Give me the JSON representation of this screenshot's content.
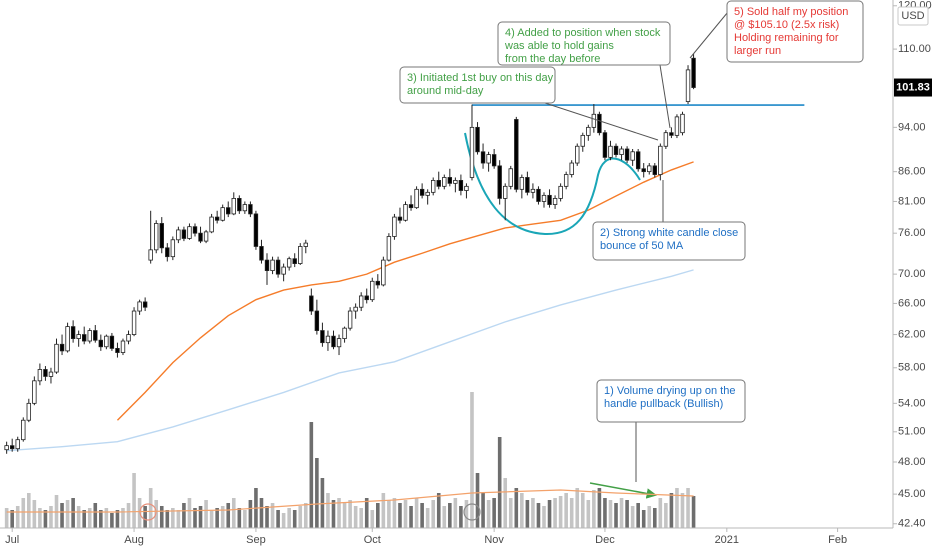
{
  "chart_data": {
    "type": "candlestick",
    "currency": "USD",
    "xlim": [
      -1.2,
      160
    ],
    "xticks": [
      {
        "value": 1,
        "label": "Jul"
      },
      {
        "value": 23,
        "label": "Aug"
      },
      {
        "value": 45,
        "label": "Sep"
      },
      {
        "value": 66,
        "label": "Oct"
      },
      {
        "value": 88,
        "label": "Nov"
      },
      {
        "value": 108,
        "label": "Dec"
      },
      {
        "value": 130,
        "label": "2021"
      },
      {
        "value": 150,
        "label": "Feb"
      }
    ],
    "ylim": [
      42.04,
      121.4
    ],
    "log_scale": true,
    "grid": false,
    "yticks": [
      {
        "value": 120,
        "label": "120.00"
      },
      {
        "value": 110,
        "label": "110.00"
      },
      {
        "value": 94,
        "label": "94.00"
      },
      {
        "value": 86,
        "label": "86.00"
      },
      {
        "value": 81,
        "label": "81.00"
      },
      {
        "value": 76,
        "label": "76.00"
      },
      {
        "value": 70,
        "label": "70.00"
      },
      {
        "value": 66,
        "label": "66.00"
      },
      {
        "value": 62,
        "label": "62.00"
      },
      {
        "value": 58,
        "label": "58.00"
      },
      {
        "value": 54,
        "label": "54.00"
      },
      {
        "value": 51,
        "label": "51.00"
      },
      {
        "value": 48,
        "label": "48.00"
      },
      {
        "value": 45,
        "label": "45.00"
      },
      {
        "value": 42.4,
        "label": "42.40"
      }
    ],
    "last_price": {
      "value": 101.83,
      "label": "101.83"
    },
    "up_color": "#ffffff",
    "down_color": "#000000",
    "ohlc": [
      [
        49.2,
        50.0,
        48.8,
        49.6
      ],
      [
        49.6,
        50.3,
        49.0,
        49.3
      ],
      [
        49.3,
        50.5,
        49.0,
        50.2
      ],
      [
        50.2,
        52.5,
        50.0,
        52.2
      ],
      [
        52.2,
        54.5,
        52.0,
        54.0
      ],
      [
        54.0,
        57.0,
        53.8,
        56.5
      ],
      [
        56.5,
        58.5,
        56.0,
        57.8
      ],
      [
        57.8,
        58.2,
        56.5,
        57.0
      ],
      [
        57.0,
        58.0,
        56.2,
        57.5
      ],
      [
        57.5,
        61.5,
        57.3,
        60.8
      ],
      [
        60.8,
        62.0,
        59.5,
        60.0
      ],
      [
        60.0,
        63.5,
        59.8,
        63.0
      ],
      [
        63.0,
        63.8,
        61.0,
        61.5
      ],
      [
        61.5,
        62.5,
        60.5,
        62.0
      ],
      [
        62.0,
        63.0,
        60.8,
        61.2
      ],
      [
        61.2,
        62.8,
        60.9,
        62.5
      ],
      [
        62.5,
        63.2,
        61.0,
        61.3
      ],
      [
        61.3,
        62.0,
        60.0,
        60.5
      ],
      [
        60.5,
        62.0,
        60.2,
        61.8
      ],
      [
        61.8,
        62.2,
        60.0,
        60.3
      ],
      [
        60.3,
        61.0,
        59.2,
        59.8
      ],
      [
        59.8,
        61.5,
        59.5,
        61.2
      ],
      [
        61.2,
        62.5,
        60.8,
        62.0
      ],
      [
        62.0,
        65.5,
        61.8,
        65.0
      ],
      [
        65.0,
        66.5,
        64.5,
        66.2
      ],
      [
        66.2,
        66.8,
        65.0,
        65.5
      ],
      [
        72.0,
        79.5,
        71.5,
        73.5
      ],
      [
        73.5,
        78.0,
        73.0,
        77.5
      ],
      [
        77.5,
        78.5,
        73.0,
        73.8
      ],
      [
        73.8,
        74.5,
        71.8,
        72.5
      ],
      [
        72.5,
        75.5,
        72.0,
        75.0
      ],
      [
        75.0,
        77.0,
        74.5,
        76.5
      ],
      [
        76.5,
        77.0,
        74.8,
        75.2
      ],
      [
        75.2,
        77.5,
        75.0,
        77.0
      ],
      [
        77.0,
        77.5,
        75.5,
        76.0
      ],
      [
        76.0,
        77.0,
        74.5,
        74.8
      ],
      [
        74.8,
        76.5,
        74.5,
        76.2
      ],
      [
        76.2,
        79.0,
        76.0,
        78.5
      ],
      [
        78.5,
        79.5,
        77.5,
        78.0
      ],
      [
        78.0,
        80.5,
        77.8,
        80.0
      ],
      [
        80.0,
        81.0,
        78.5,
        79.0
      ],
      [
        79.0,
        82.5,
        78.8,
        81.5
      ],
      [
        81.5,
        82.0,
        79.0,
        79.5
      ],
      [
        79.5,
        81.0,
        79.0,
        80.5
      ],
      [
        80.5,
        81.0,
        78.5,
        79.0
      ],
      [
        79.0,
        79.5,
        73.5,
        74.0
      ],
      [
        74.0,
        75.0,
        71.5,
        72.0
      ],
      [
        72.0,
        73.0,
        68.5,
        70.5
      ],
      [
        70.5,
        72.5,
        70.0,
        72.0
      ],
      [
        72.0,
        72.5,
        69.5,
        70.0
      ],
      [
        70.0,
        71.5,
        69.0,
        71.0
      ],
      [
        71.0,
        72.5,
        70.5,
        72.2
      ],
      [
        72.2,
        73.0,
        71.0,
        71.5
      ],
      [
        71.5,
        74.5,
        71.3,
        74.0
      ],
      [
        74.0,
        75.0,
        73.0,
        74.5
      ],
      [
        67.0,
        68.0,
        64.5,
        65.0
      ],
      [
        65.0,
        66.5,
        62.0,
        62.5
      ],
      [
        62.5,
        63.5,
        60.5,
        61.0
      ],
      [
        61.0,
        62.5,
        60.0,
        61.8
      ],
      [
        61.8,
        62.5,
        60.2,
        60.5
      ],
      [
        60.5,
        62.0,
        59.5,
        61.5
      ],
      [
        61.5,
        63.0,
        61.0,
        62.8
      ],
      [
        62.8,
        65.5,
        62.5,
        65.0
      ],
      [
        65.0,
        66.0,
        64.0,
        65.5
      ],
      [
        65.5,
        67.5,
        65.0,
        67.0
      ],
      [
        67.0,
        68.0,
        66.0,
        66.5
      ],
      [
        66.5,
        69.5,
        66.2,
        69.0
      ],
      [
        69.0,
        70.0,
        68.0,
        68.5
      ],
      [
        68.5,
        72.5,
        68.3,
        72.0
      ],
      [
        72.0,
        76.0,
        71.8,
        75.5
      ],
      [
        75.5,
        79.0,
        75.0,
        78.5
      ],
      [
        78.5,
        80.0,
        77.5,
        78.0
      ],
      [
        78.0,
        81.0,
        77.8,
        80.5
      ],
      [
        80.5,
        82.0,
        79.5,
        80.0
      ],
      [
        80.0,
        83.5,
        79.8,
        83.0
      ],
      [
        83.0,
        84.0,
        81.5,
        82.0
      ],
      [
        82.0,
        83.0,
        80.5,
        82.5
      ],
      [
        82.5,
        85.0,
        82.0,
        84.5
      ],
      [
        84.5,
        86.0,
        83.0,
        83.5
      ],
      [
        83.5,
        85.5,
        83.0,
        85.0
      ],
      [
        85.0,
        86.5,
        83.5,
        84.0
      ],
      [
        84.0,
        85.0,
        82.5,
        84.5
      ],
      [
        84.5,
        85.5,
        82.0,
        82.8
      ],
      [
        82.8,
        84.0,
        81.5,
        83.5
      ],
      [
        85.0,
        98.4,
        84.5,
        94.0
      ],
      [
        94.0,
        95.0,
        89.0,
        89.5
      ],
      [
        89.5,
        91.0,
        86.5,
        87.5
      ],
      [
        87.5,
        89.5,
        86.0,
        89.0
      ],
      [
        89.0,
        90.0,
        86.5,
        87.0
      ],
      [
        87.0,
        88.0,
        80.5,
        81.5
      ],
      [
        81.5,
        84.0,
        78.0,
        83.5
      ],
      [
        83.5,
        87.0,
        83.0,
        86.5
      ],
      [
        95.5,
        96.0,
        82.5,
        83.0
      ],
      [
        83.0,
        85.5,
        81.5,
        85.0
      ],
      [
        85.0,
        86.0,
        82.0,
        82.5
      ],
      [
        82.5,
        84.0,
        81.5,
        83.0
      ],
      [
        83.0,
        83.5,
        80.5,
        81.0
      ],
      [
        81.0,
        82.5,
        80.0,
        82.0
      ],
      [
        82.0,
        83.0,
        80.0,
        80.5
      ],
      [
        80.5,
        82.0,
        79.8,
        81.5
      ],
      [
        81.5,
        84.0,
        81.0,
        83.5
      ],
      [
        83.5,
        86.0,
        83.0,
        85.5
      ],
      [
        85.5,
        88.0,
        85.0,
        87.5
      ],
      [
        87.5,
        91.0,
        87.0,
        90.5
      ],
      [
        90.5,
        93.0,
        89.5,
        92.5
      ],
      [
        92.5,
        94.5,
        91.5,
        94.0
      ],
      [
        94.0,
        98.5,
        93.0,
        96.5
      ],
      [
        96.5,
        97.0,
        92.5,
        93.0
      ],
      [
        93.0,
        93.5,
        88.0,
        88.5
      ],
      [
        88.5,
        91.5,
        88.0,
        90.5
      ],
      [
        90.5,
        91.0,
        88.5,
        89.0
      ],
      [
        89.0,
        90.5,
        88.0,
        90.0
      ],
      [
        90.0,
        90.5,
        87.5,
        88.0
      ],
      [
        88.0,
        90.0,
        87.0,
        89.5
      ],
      [
        89.5,
        90.0,
        86.0,
        86.5
      ],
      [
        86.5,
        87.5,
        85.0,
        86.0
      ],
      [
        86.0,
        87.5,
        85.5,
        87.0
      ],
      [
        87.0,
        87.5,
        85.0,
        85.5
      ],
      [
        85.5,
        91.0,
        84.5,
        90.5
      ],
      [
        90.5,
        93.5,
        90.0,
        93.0
      ],
      [
        93.0,
        94.0,
        92.0,
        92.5
      ],
      [
        92.5,
        96.5,
        92.0,
        96.0
      ],
      [
        93.0,
        97.0,
        92.5,
        96.5
      ],
      [
        99.0,
        106.5,
        98.5,
        105.5
      ],
      [
        108.0,
        109.0,
        101.5,
        101.83
      ]
    ],
    "vlim": [
      0,
      136
    ],
    "volume_up_color": "#c4c4c4",
    "volume_down_color": "#6e6e6e",
    "volume": [
      20,
      18,
      22,
      30,
      35,
      28,
      20,
      18,
      22,
      33,
      25,
      28,
      30,
      22,
      18,
      20,
      25,
      18,
      20,
      15,
      18,
      20,
      25,
      55,
      30,
      22,
      40,
      28,
      22,
      18,
      20,
      18,
      25,
      30,
      20,
      22,
      28,
      18,
      20,
      22,
      25,
      30,
      20,
      18,
      28,
      40,
      30,
      22,
      25,
      18,
      15,
      20,
      18,
      22,
      25,
      106,
      70,
      50,
      35,
      28,
      30,
      25,
      28,
      22,
      20,
      30,
      18,
      25,
      35,
      28,
      30,
      25,
      28,
      22,
      30,
      25,
      20,
      28,
      35,
      22,
      25,
      30,
      22,
      28,
      136,
      55,
      35,
      28,
      30,
      91,
      50,
      30,
      40,
      35,
      28,
      30,
      25,
      22,
      28,
      30,
      32,
      35,
      30,
      40,
      35,
      28,
      38,
      40,
      30,
      28,
      25,
      30,
      28,
      22,
      25,
      18,
      22,
      20,
      30,
      25,
      35,
      40,
      35,
      40,
      32
    ],
    "series": [
      {
        "color": "#f57c2a",
        "x": [
          20,
          25,
          30,
          35,
          40,
          45,
          50,
          55,
          60,
          65,
          70,
          75,
          80,
          85,
          90,
          95,
          100,
          105,
          110,
          115,
          120,
          124
        ],
        "values": [
          52.2,
          55.2,
          58.6,
          61.6,
          64.4,
          66.5,
          67.8,
          68.5,
          69.0,
          70.0,
          71.7,
          73.0,
          74.4,
          75.6,
          76.8,
          77.4,
          78.0,
          79.6,
          81.9,
          84.2,
          86.3,
          87.7
        ]
      },
      {
        "color": "#bcd8f2",
        "x": [
          0,
          10,
          20,
          30,
          40,
          50,
          60,
          70,
          80,
          90,
          100,
          110,
          120,
          124
        ],
        "values": [
          49.1,
          49.5,
          50.0,
          51.5,
          53.3,
          55.2,
          57.4,
          58.7,
          61.1,
          63.6,
          65.8,
          67.8,
          69.7,
          70.6
        ]
      },
      {
        "color": "#f3a26b",
        "axis": "volume",
        "x": [
          0,
          20,
          40,
          56,
          70,
          84,
          100,
          110,
          124
        ],
        "values": [
          16,
          16,
          18,
          24,
          28,
          35,
          38,
          35,
          32
        ]
      }
    ],
    "resistance": {
      "value": 98.3,
      "x": [
        84,
        144
      ],
      "color": "#1e88c8"
    },
    "annotations": [
      {
        "lines": [
          "1) Volume drying up on the",
          "handle pullback (Bullish)"
        ],
        "color": "#1f6fc4"
      },
      {
        "lines": [
          "2) Strong white candle close",
          "bounce of 50 MA"
        ],
        "color": "#1f6fc4"
      },
      {
        "lines": [
          "3) Initiated 1st buy on this day",
          "around mid-day"
        ],
        "color": "#43a047"
      },
      {
        "lines": [
          "4) Added to position when stock",
          "was able to hold gains",
          "from the day before"
        ],
        "color": "#43a047"
      },
      {
        "lines": [
          "5) Sold half my position",
          "@ $105.10 (2.5x risk)",
          "Holding remaining for",
          "larger run"
        ],
        "color": "#e53935"
      }
    ]
  }
}
